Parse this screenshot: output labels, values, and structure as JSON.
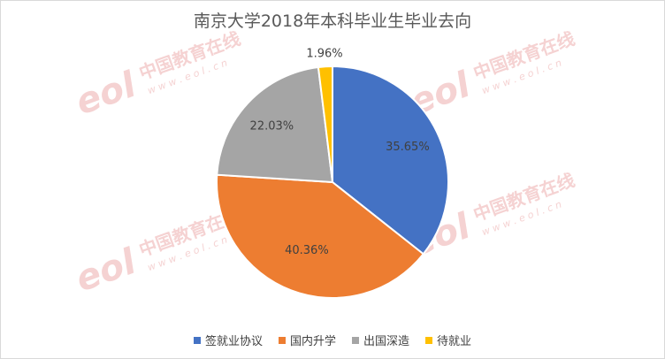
{
  "watermark": {
    "logo": "eol",
    "text_cn": "中国教育在线",
    "text_url": "w w w . e o l . c n",
    "color": "#f2c4c4"
  },
  "chart_data": {
    "type": "pie",
    "title": "南京大学2018年本科毕业生毕业去向",
    "categories": [
      "签就业协议",
      "国内升学",
      "出国深造",
      "待就业"
    ],
    "values": [
      35.65,
      40.36,
      22.03,
      1.96
    ],
    "labels": [
      "35.65%",
      "40.36%",
      "22.03%",
      "1.96%"
    ],
    "colors": [
      "#4472c4",
      "#ed7d31",
      "#a5a5a5",
      "#ffc000"
    ],
    "start_angle_deg": 0,
    "direction": "clockwise",
    "legend_position": "bottom"
  }
}
